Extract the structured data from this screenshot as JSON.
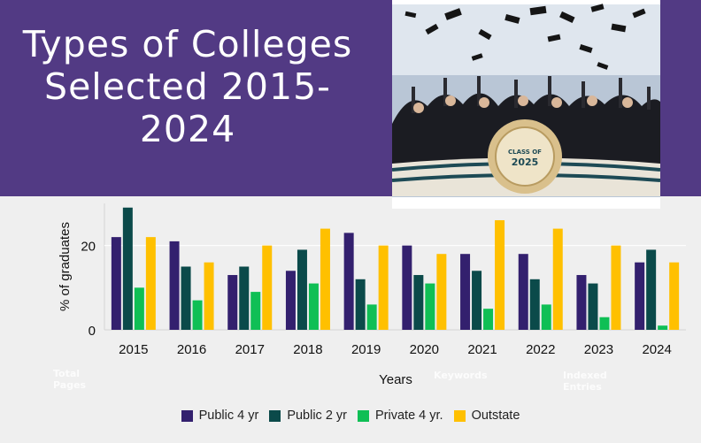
{
  "banner": {
    "title": "Types of Colleges Selected 2015-2024",
    "title_lines": [
      "Types of Colleges",
      "Selected 2015-",
      "2024"
    ],
    "background_color": "#523a84",
    "photo": {
      "description_icon": "graduation-caps-photo",
      "seal_text": [
        "CLASS OF",
        "2025"
      ]
    }
  },
  "chart_data": {
    "type": "bar",
    "title": "",
    "xlabel": "Years",
    "ylabel": "% of graduates",
    "categories": [
      "2015",
      "2016",
      "2017",
      "2018",
      "2019",
      "2020",
      "2021",
      "2022",
      "2023",
      "2024"
    ],
    "series": [
      {
        "name": "Public 4 yr",
        "color": "#33206e",
        "values": [
          22,
          21,
          13,
          14,
          23,
          20,
          18,
          18,
          13,
          16
        ]
      },
      {
        "name": "Public 2 yr",
        "color": "#0b4a4a",
        "values": [
          29,
          15,
          15,
          19,
          12,
          13,
          14,
          12,
          11,
          19
        ]
      },
      {
        "name": "Private 4 yr.",
        "color": "#0fbf55",
        "values": [
          10,
          7,
          9,
          11,
          6,
          11,
          5,
          6,
          3,
          1
        ]
      },
      {
        "name": "Outstate",
        "color": "#ffc000",
        "values": [
          22,
          16,
          20,
          24,
          20,
          18,
          26,
          24,
          20,
          16
        ]
      }
    ],
    "yticks": [
      0,
      20
    ],
    "ylim": [
      0,
      30
    ],
    "grid": true,
    "legend": "bottom",
    "watermark_labels": [
      "Total Pages",
      "Keywords",
      "Indexed Entries"
    ]
  }
}
